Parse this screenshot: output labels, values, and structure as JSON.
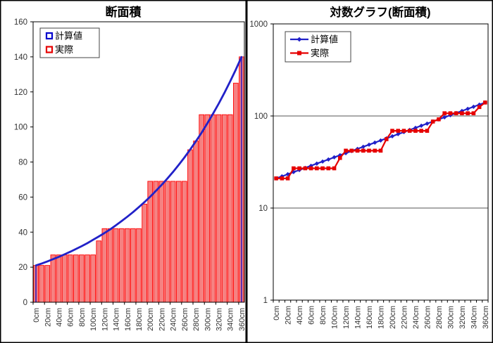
{
  "figure": {
    "description": "Two Excel-style charts: linear area chart and logarithmic chart of the same data",
    "colors": {
      "calc_line": "#2121C8",
      "calc_legend": "#0000CC",
      "actual_line": "#E60000",
      "bar_fill": "#F58282",
      "bar_stroke": "#FF0000",
      "grid": "#777777",
      "axis": "#000000",
      "drop_line": "#5B30B0",
      "label_text": "#333333"
    }
  },
  "chart_data": [
    {
      "type": "bar",
      "title": "断面積",
      "y_scale": "linear",
      "ylim": [
        0,
        160
      ],
      "yticks": [
        0,
        20,
        40,
        60,
        80,
        100,
        120,
        140,
        160
      ],
      "grid": false,
      "legend_position": "top-left",
      "x_cm": [
        0,
        10,
        20,
        30,
        40,
        50,
        60,
        70,
        80,
        90,
        100,
        110,
        120,
        130,
        140,
        150,
        160,
        170,
        180,
        190,
        200,
        210,
        220,
        230,
        240,
        250,
        260,
        270,
        280,
        290,
        300,
        310,
        320,
        330,
        340,
        350,
        360
      ],
      "x_tick_labels": [
        "0cm",
        "20cm",
        "40cm",
        "60cm",
        "80cm",
        "100cm",
        "120cm",
        "140cm",
        "160cm",
        "180cm",
        "200cm",
        "220cm",
        "240cm",
        "260cm",
        "280cm",
        "300cm",
        "320cm",
        "340cm",
        "360cm"
      ],
      "series": [
        {
          "name": "計算値",
          "type": "line",
          "marker": "none",
          "legend_marker": "open-square",
          "color": "#2121C8",
          "legend_color": "#0000CC",
          "values": [
            21,
            22.1,
            23.3,
            24.6,
            25.9,
            27.3,
            28.8,
            30.4,
            32,
            33.7,
            35.6,
            37.5,
            39.5,
            41.6,
            43.9,
            46.3,
            48.8,
            51.4,
            54.2,
            57.1,
            60.2,
            63.5,
            66.9,
            70.5,
            74.3,
            78.4,
            82.6,
            87.1,
            91.8,
            96.7,
            102,
            107.5,
            113.3,
            119.4,
            125.9,
            132.7,
            139.9
          ]
        },
        {
          "name": "実際",
          "type": "bar",
          "marker": "none",
          "legend_marker": "open-square",
          "color": "#FF0000",
          "fill": "#F58282",
          "legend_color": "#E60000",
          "values": [
            21,
            21,
            21,
            27,
            27,
            27,
            27,
            27,
            27,
            27,
            27,
            35,
            42,
            42,
            42,
            42,
            42,
            42,
            42,
            56,
            69,
            69,
            69,
            69,
            69,
            69,
            69,
            87,
            92,
            107,
            107,
            107,
            107,
            107,
            107,
            125,
            140
          ]
        }
      ],
      "drop_lines": {
        "color": "#5B30B0",
        "at_indices": [
          0,
          36
        ]
      }
    },
    {
      "type": "line",
      "title": "対数グラフ(断面積)",
      "y_scale": "log",
      "ylim": [
        1,
        1000
      ],
      "yticks": [
        1,
        10,
        100,
        1000
      ],
      "grid": "decades",
      "legend_position": "top-left",
      "x_cm": [
        0,
        10,
        20,
        30,
        40,
        50,
        60,
        70,
        80,
        90,
        100,
        110,
        120,
        130,
        140,
        150,
        160,
        170,
        180,
        190,
        200,
        210,
        220,
        230,
        240,
        250,
        260,
        270,
        280,
        290,
        300,
        310,
        320,
        330,
        340,
        350,
        360
      ],
      "x_tick_labels": [
        "0cm",
        "20cm",
        "40cm",
        "60cm",
        "80cm",
        "100cm",
        "120cm",
        "140cm",
        "160cm",
        "180cm",
        "200cm",
        "220cm",
        "240cm",
        "260cm",
        "280cm",
        "300cm",
        "320cm",
        "340cm",
        "360cm"
      ],
      "series": [
        {
          "name": "計算値",
          "type": "line",
          "marker": "diamond",
          "legend_marker": "line-diamond",
          "color": "#2121C8",
          "values": [
            21,
            22.1,
            23.3,
            24.6,
            25.9,
            27.3,
            28.8,
            30.4,
            32,
            33.7,
            35.6,
            37.5,
            39.5,
            41.6,
            43.9,
            46.3,
            48.8,
            51.4,
            54.2,
            57.1,
            60.2,
            63.5,
            66.9,
            70.5,
            74.3,
            78.4,
            82.6,
            87.1,
            91.8,
            96.7,
            102,
            107.5,
            113.3,
            119.4,
            125.9,
            132.7,
            139.9
          ]
        },
        {
          "name": "実際",
          "type": "line",
          "marker": "square",
          "legend_marker": "line-square",
          "color": "#E60000",
          "values": [
            21,
            21,
            21,
            27,
            27,
            27,
            27,
            27,
            27,
            27,
            27,
            35,
            42,
            42,
            42,
            42,
            42,
            42,
            42,
            56,
            69,
            69,
            69,
            69,
            69,
            69,
            69,
            87,
            92,
            107,
            107,
            107,
            107,
            107,
            107,
            125,
            140
          ]
        }
      ]
    }
  ]
}
